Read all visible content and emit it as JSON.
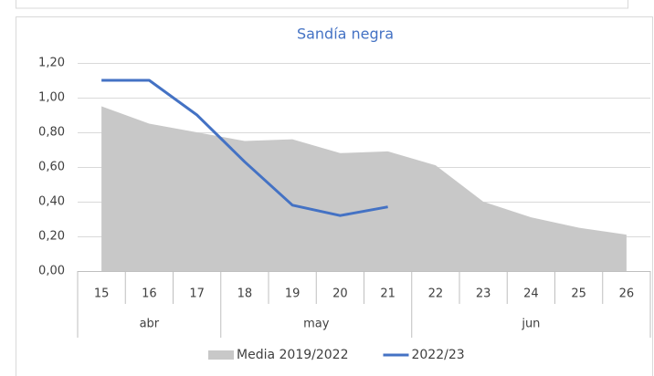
{
  "chart_data": {
    "type": "line",
    "title": "Sandía negra",
    "categories": [
      "15",
      "16",
      "17",
      "18",
      "19",
      "20",
      "21",
      "22",
      "23",
      "24",
      "25",
      "26"
    ],
    "months": [
      "abr",
      "abr",
      "abr",
      "may",
      "may",
      "may",
      "may",
      "jun",
      "jun",
      "jun",
      "jun",
      "jun"
    ],
    "series": [
      {
        "name": "Media 2019/2022",
        "kind": "area",
        "color": "#c8c8c8",
        "values": [
          0.95,
          0.85,
          0.8,
          0.75,
          0.76,
          0.68,
          0.69,
          0.61,
          0.4,
          0.31,
          0.25,
          0.21
        ]
      },
      {
        "name": "2022/23",
        "kind": "line",
        "color": "#4472c4",
        "values": [
          1.1,
          1.1,
          0.9,
          0.63,
          0.38,
          0.32,
          0.37,
          null,
          null,
          null,
          null,
          null
        ]
      }
    ],
    "ylim": [
      0,
      1.2
    ],
    "yticks": [
      {
        "value": 0,
        "label": "0,00"
      },
      {
        "value": 0.2,
        "label": "0,20"
      },
      {
        "value": 0.4,
        "label": "0,40"
      },
      {
        "value": 0.6,
        "label": "0,60"
      },
      {
        "value": 0.8,
        "label": "0,80"
      },
      {
        "value": 1.0,
        "label": "1,00"
      },
      {
        "value": 1.2,
        "label": "1,20"
      }
    ],
    "grid": true,
    "legend": "bottom"
  }
}
